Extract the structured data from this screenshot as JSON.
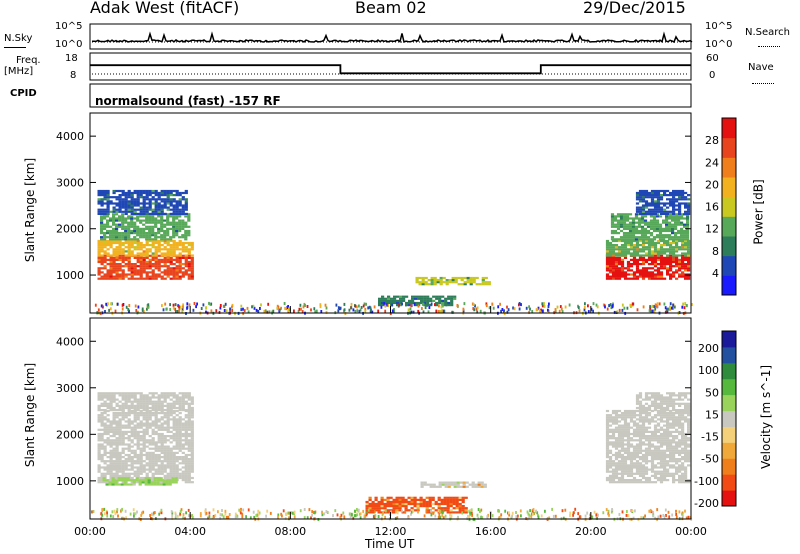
{
  "header": {
    "radar": "Adak West (fitACF)",
    "beam": "Beam 02",
    "date": "29/Dec/2015"
  },
  "summary_labels": {
    "nsky": "N.Sky",
    "nsearch": "N.Search",
    "freq_top": "Freq.",
    "freq_unit": "[MHz]",
    "cpid": "CPID",
    "nave": "Nave",
    "nsky_tick_hi": "10^5",
    "nsky_tick_lo": "10^0",
    "nsearch_tick_hi": "10^5",
    "nsearch_tick_lo": "10^0",
    "freq_tick_hi": "18",
    "freq_tick_lo": "8",
    "nave_tick_hi": "60",
    "nave_tick_lo": "0",
    "mode_text": "normalsound (fast) -157 RF"
  },
  "colors": {
    "power": [
      "#1a1aff",
      "#1f47b5",
      "#2e7d5a",
      "#58a85a",
      "#c8c820",
      "#f2b21f",
      "#f07e1a",
      "#e8451f",
      "#e51010"
    ],
    "velocity": [
      "#e51010",
      "#f24a14",
      "#f07e1a",
      "#f0a83a",
      "#f5d07a",
      "#c8c8c0",
      "#9ad35c",
      "#56b83c",
      "#2e8c3c",
      "#2450a0",
      "#1a1a9a"
    ],
    "ground_scatter": "#c8c8c0"
  },
  "chart_data": [
    {
      "type": "heatmap",
      "name": "power",
      "xlabel": "",
      "ylabel": "Slant Range [km]",
      "xlim": [
        0,
        24
      ],
      "ylim": [
        180,
        4500
      ],
      "y_ticks": [
        "1000",
        "2000",
        "3000",
        "4000"
      ],
      "colorbar_label": "Power [dB]",
      "colorbar_ticks": [
        "4",
        "8",
        "12",
        "16",
        "20",
        "24",
        "28"
      ],
      "colorbar_range": [
        0,
        32
      ],
      "regions": [
        {
          "t0": 0.3,
          "t1": 4.1,
          "r0": 900,
          "r1": 1400,
          "level": 26
        },
        {
          "t0": 0.3,
          "t1": 4.1,
          "r0": 1400,
          "r1": 1750,
          "level": 18
        },
        {
          "t0": 0.4,
          "t1": 4.0,
          "r0": 1750,
          "r1": 2300,
          "level": 10
        },
        {
          "t0": 0.3,
          "t1": 3.9,
          "r0": 2300,
          "r1": 2800,
          "level": 8
        },
        {
          "t0": 13.0,
          "t1": 15.9,
          "r0": 780,
          "r1": 950,
          "level": 12
        },
        {
          "t0": 11.5,
          "t1": 14.5,
          "r0": 330,
          "r1": 550,
          "level": 8
        },
        {
          "t0": 20.6,
          "t1": 23.9,
          "r0": 900,
          "r1": 1400,
          "level": 26
        },
        {
          "t0": 20.6,
          "t1": 23.9,
          "r0": 1400,
          "r1": 1750,
          "level": 18
        },
        {
          "t0": 20.8,
          "t1": 23.9,
          "r0": 1750,
          "r1": 2300,
          "level": 10
        },
        {
          "t0": 21.8,
          "t1": 23.9,
          "r0": 2300,
          "r1": 2800,
          "level": 8
        }
      ]
    },
    {
      "type": "heatmap",
      "name": "velocity",
      "xlabel": "Time UT",
      "ylabel": "Slant Range [km]",
      "xlim": [
        0,
        24
      ],
      "ylim": [
        180,
        4500
      ],
      "x_ticks": [
        "00:00",
        "04:00",
        "08:00",
        "12:00",
        "16:00",
        "20:00",
        "00:00"
      ],
      "y_ticks": [
        "1000",
        "2000",
        "3000",
        "4000"
      ],
      "colorbar_label": "Velocity [m s^-1]",
      "colorbar_ticks": [
        "200",
        "100",
        "50",
        "15",
        "-15",
        "-50",
        "-100",
        "-200"
      ],
      "regions": [
        {
          "t0": 0.3,
          "t1": 4.1,
          "r0": 950,
          "r1": 2500,
          "level": "ground"
        },
        {
          "t0": 0.3,
          "t1": 4.1,
          "r0": 2500,
          "r1": 2900,
          "level": "ground"
        },
        {
          "t0": 0.5,
          "t1": 3.5,
          "r0": 900,
          "r1": 1050,
          "level": "low_pos"
        },
        {
          "t0": 11.0,
          "t1": 15.0,
          "r0": 300,
          "r1": 650,
          "level": "neg"
        },
        {
          "t0": 13.2,
          "t1": 15.8,
          "r0": 850,
          "r1": 980,
          "level": "neg_mid"
        },
        {
          "t0": 20.6,
          "t1": 23.9,
          "r0": 950,
          "r1": 2500,
          "level": "ground"
        },
        {
          "t0": 21.8,
          "t1": 23.9,
          "r0": 2500,
          "r1": 2900,
          "level": "ground"
        }
      ]
    },
    {
      "type": "line",
      "name": "frequency",
      "ylabel": "Freq. [MHz]",
      "ylim": [
        8,
        18
      ],
      "x": [
        0,
        10,
        10,
        18,
        18,
        24
      ],
      "y": [
        13.5,
        13.5,
        10.5,
        10.5,
        13.5,
        13.5
      ]
    }
  ]
}
